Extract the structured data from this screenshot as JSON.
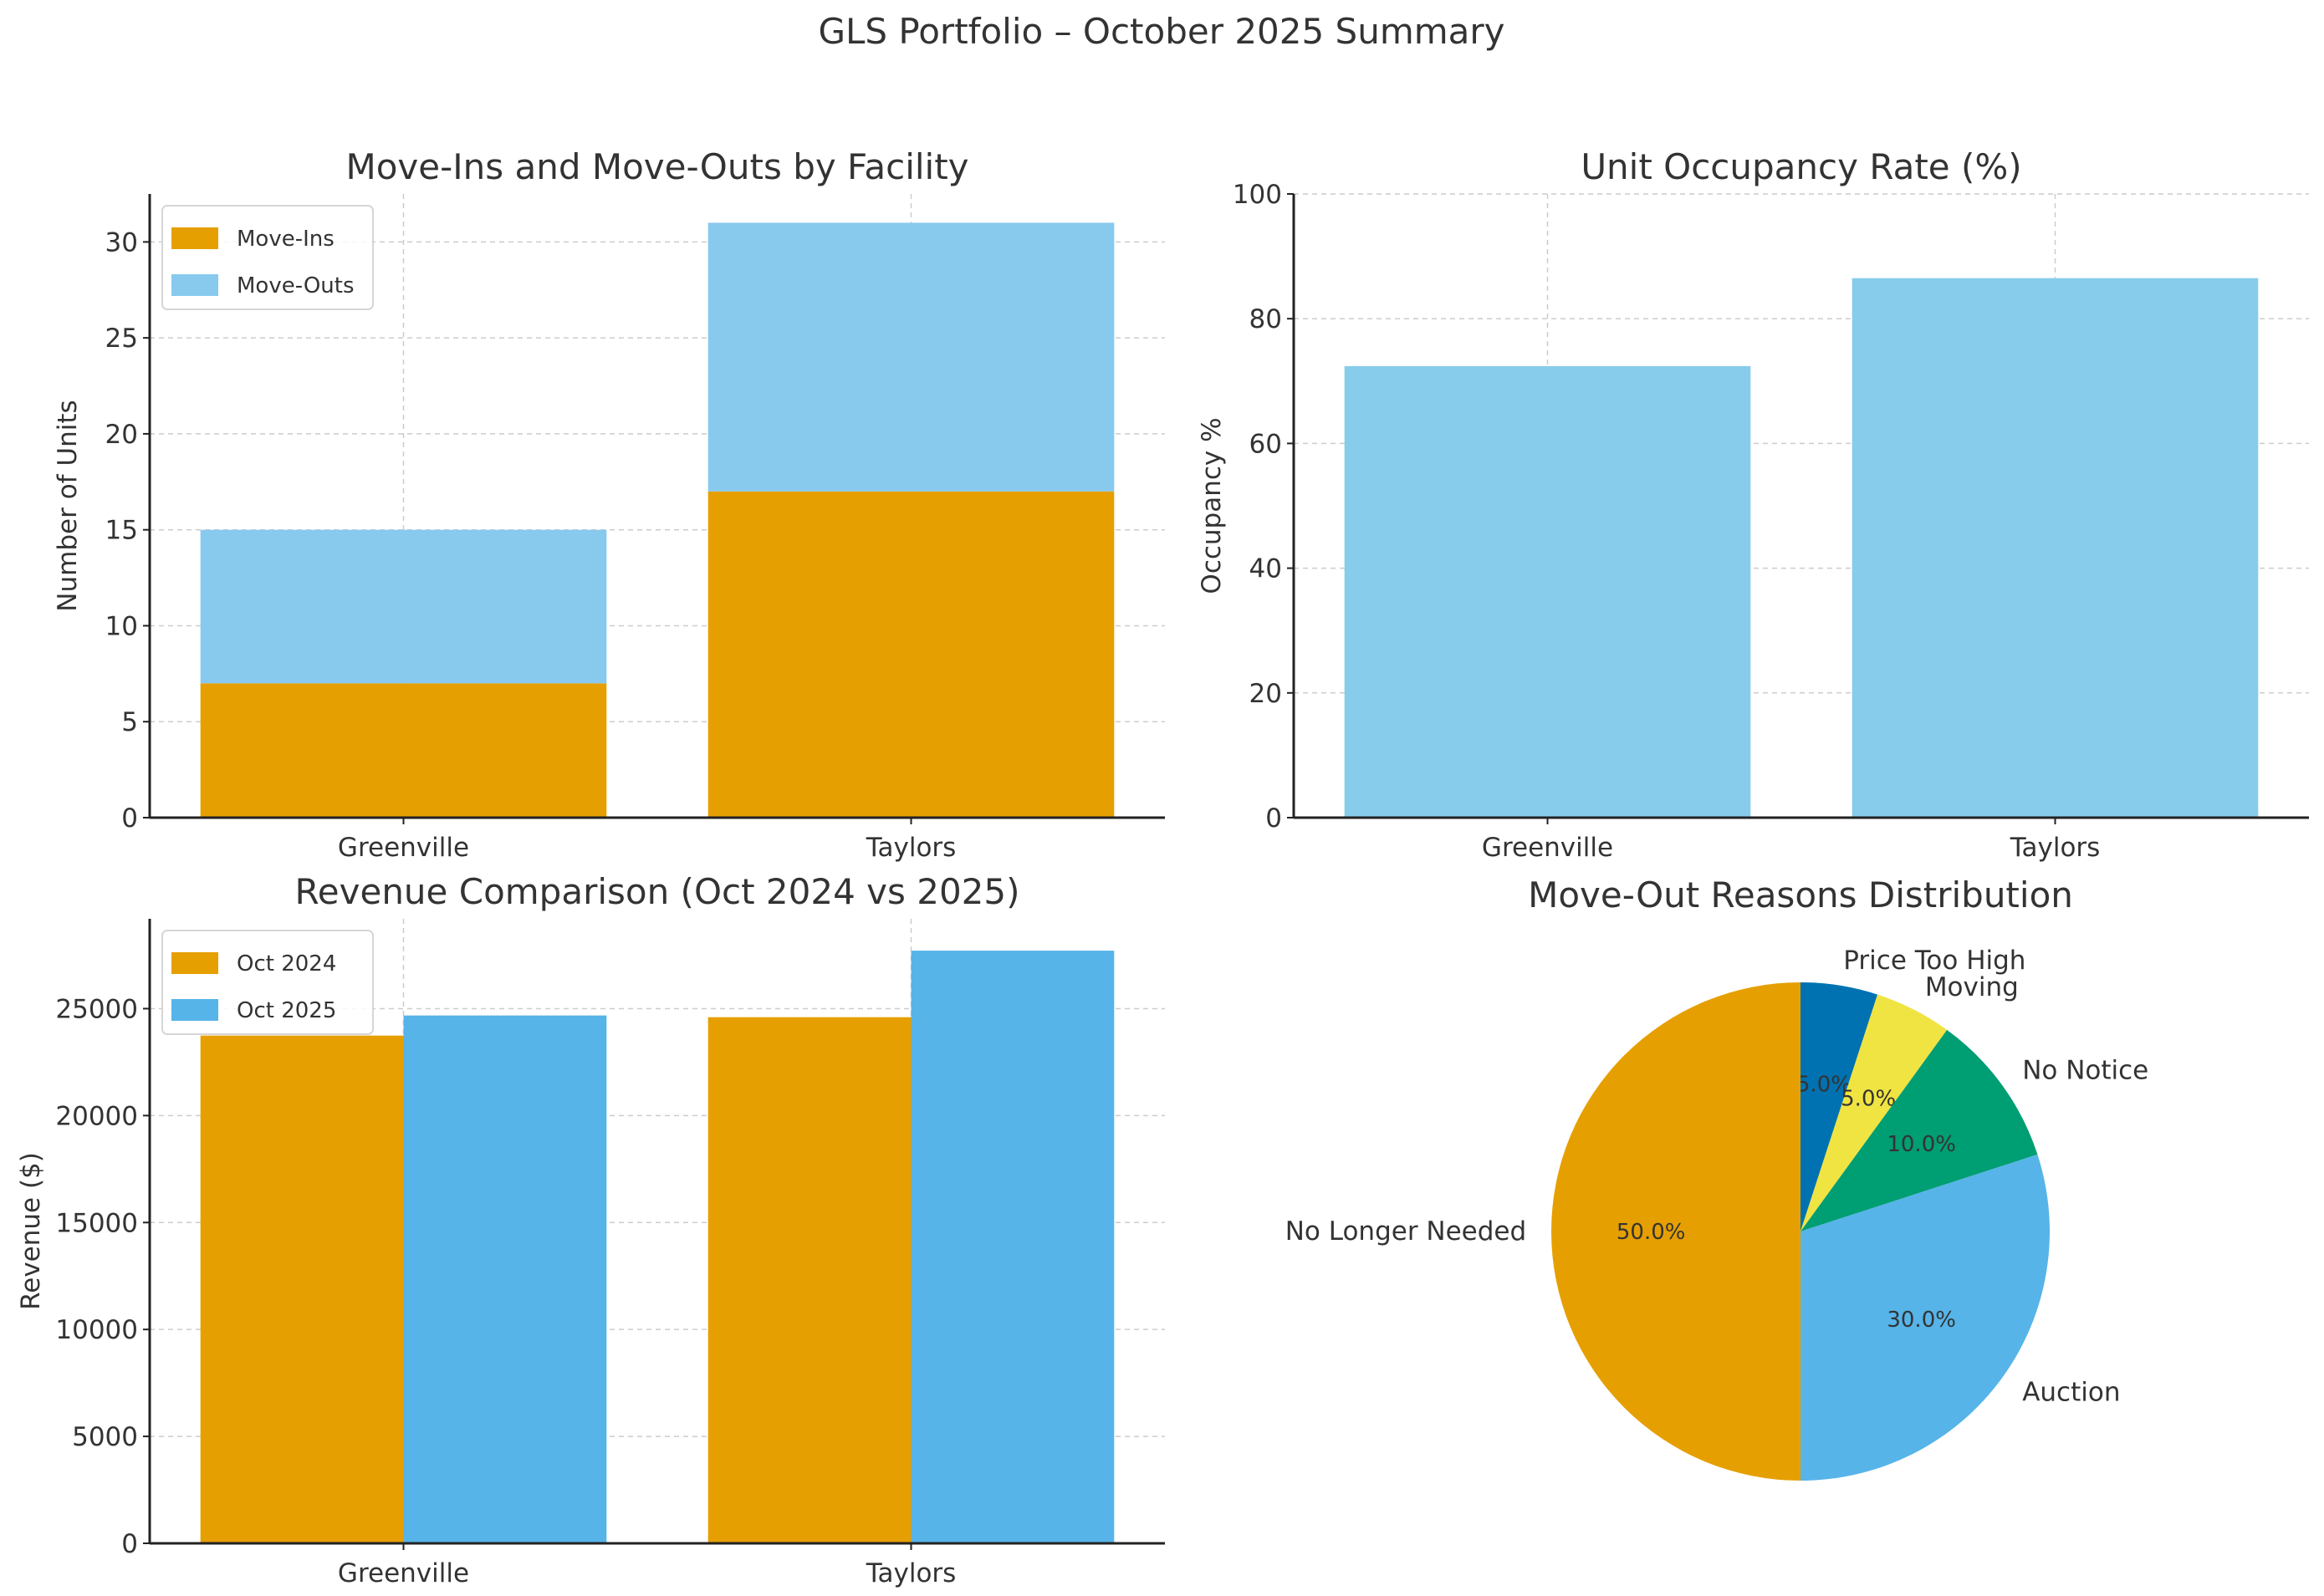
{
  "suptitle": "GLS Portfolio – October 2025 Summary",
  "chart_data": [
    {
      "type": "bar",
      "stacked": true,
      "title": "Move-Ins and Move-Outs by Facility",
      "xlabel": "",
      "ylabel": "Number of Units",
      "categories": [
        "Greenville",
        "Taylors"
      ],
      "series": [
        {
          "name": "Move-Ins",
          "values": [
            7,
            17
          ],
          "color": "#E69F00"
        },
        {
          "name": "Move-Outs",
          "values": [
            8,
            14
          ],
          "color": "#88C9EE"
        }
      ],
      "ylim": [
        0,
        32.5
      ],
      "yticks": [
        0,
        5,
        10,
        15,
        20,
        25,
        30
      ],
      "grid": true,
      "legend": "top-left"
    },
    {
      "type": "bar",
      "title": "Unit Occupancy Rate (%)",
      "xlabel": "",
      "ylabel": "Occupancy %",
      "categories": [
        "Greenville",
        "Taylors"
      ],
      "values": [
        72.4,
        86.5
      ],
      "color": "#87CCEA",
      "ylim": [
        0,
        100
      ],
      "yticks": [
        0,
        20,
        40,
        60,
        80,
        100
      ],
      "grid": true
    },
    {
      "type": "bar",
      "title": "Revenue Comparison (Oct 2024 vs 2025)",
      "xlabel": "",
      "ylabel": "Revenue ($)",
      "categories": [
        "Greenville",
        "Taylors"
      ],
      "series": [
        {
          "name": "Oct 2024",
          "values": [
            23740,
            24600
          ],
          "color": "#E69F00"
        },
        {
          "name": "Oct 2025",
          "values": [
            24680,
            27710
          ],
          "color": "#56B4E9"
        }
      ],
      "ylim": [
        0,
        29200
      ],
      "yticks": [
        0,
        5000,
        10000,
        15000,
        20000,
        25000
      ],
      "grid": true,
      "legend": "top-left"
    },
    {
      "type": "pie",
      "title": "Move-Out Reasons Distribution",
      "labels": [
        "Price Too High",
        "Moving",
        "No Notice",
        "Auction",
        "No Longer Needed"
      ],
      "values": [
        5.0,
        5.0,
        10.0,
        30.0,
        50.0
      ],
      "pct_labels": [
        "5.0%",
        "5.0%",
        "10.0%",
        "30.0%",
        "50.0%"
      ],
      "colors": [
        "#0072B2",
        "#F0E442",
        "#009E73",
        "#56B4E9",
        "#E69F00"
      ],
      "startangle": 90,
      "direction": "clockwise"
    }
  ]
}
